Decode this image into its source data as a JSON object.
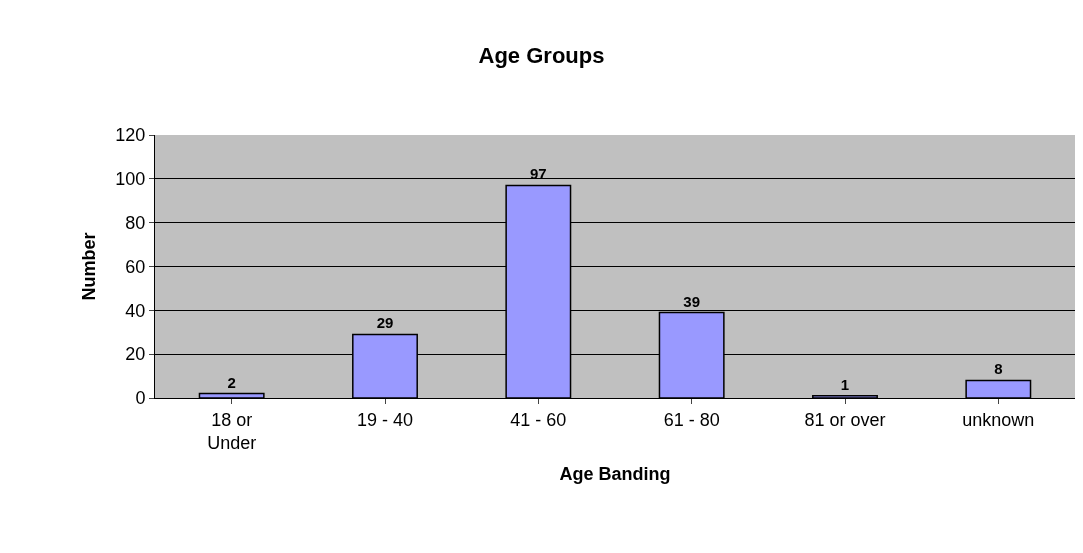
{
  "chart_data": {
    "type": "bar",
    "title": "Age Groups",
    "xlabel": "Age Banding",
    "ylabel": "Number",
    "categories": [
      "18 or\nUnder",
      "19 - 40",
      "41 - 60",
      "61 - 80",
      "81 or over",
      "unknown"
    ],
    "values": [
      2,
      29,
      97,
      39,
      1,
      8
    ],
    "color": "#9999ff",
    "ylim": [
      0,
      120
    ],
    "yticks": [
      0,
      20,
      40,
      60,
      80,
      100,
      120
    ],
    "grid": "y",
    "data_labels": true
  }
}
